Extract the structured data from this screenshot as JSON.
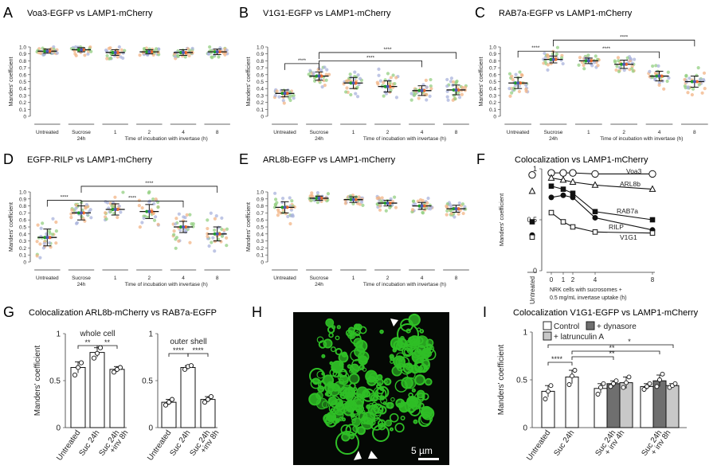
{
  "colors": {
    "green": "#93cf82",
    "purple": "#aab3dc",
    "orange": "#f2b486",
    "mean_green": "#1f9e28",
    "mean_orange": "#e8692c",
    "mean_purple": "#4b57b3",
    "microscopy_green": "#2fbf26",
    "bar_control": "#ffffff",
    "bar_dynasore": "#6f6f6f",
    "bar_latrunculin": "#c8c8c8",
    "text": "#222222"
  },
  "panels": {
    "A": {
      "letter": "A",
      "title": "Voa3-EGFP vs LAMP1-mCherry"
    },
    "B": {
      "letter": "B",
      "title": "V1G1-EGFP vs LAMP1-mCherry"
    },
    "C": {
      "letter": "C",
      "title": "RAB7a-EGFP vs LAMP1-mCherry"
    },
    "D": {
      "letter": "D",
      "title": "EGFP-RILP vs LAMP1-mCherry"
    },
    "E": {
      "letter": "E",
      "title": "ARL8b-EGFP vs LAMP1-mCherry"
    },
    "F": {
      "letter": "F",
      "title": "Colocalization vs LAMP1-mCherry"
    },
    "G": {
      "letter": "G",
      "title": "Colocalization ARL8b-mCherry vs RAB7a-EGFP"
    },
    "H": {
      "letter": "H",
      "scale_bar": "5 µm"
    },
    "I": {
      "letter": "I",
      "title": "Colocalization V1G1-EGFP vs LAMP1-mCherry"
    }
  },
  "chart_data": [
    {
      "panel": "A",
      "type": "scatter",
      "ylabel": "Manders' coefficient",
      "xlabel": "Time of incubation with invertase (h)",
      "ylim": [
        0,
        1.0
      ],
      "yticks": [
        "0",
        "0.1",
        "0.2",
        "0.3",
        "0.4",
        "0.5",
        "0.6",
        "0.7",
        "0.8",
        "0.9",
        "1.0"
      ],
      "categories": [
        "Untreated",
        "Sucrose\n24h",
        "1",
        "2",
        "4",
        "8"
      ],
      "means": [
        0.94,
        0.96,
        0.92,
        0.93,
        0.92,
        0.93
      ],
      "sd": [
        0.03,
        0.03,
        0.04,
        0.03,
        0.04,
        0.04
      ],
      "spread": [
        0.05,
        0.05,
        0.06,
        0.05,
        0.06,
        0.06
      ],
      "significance": []
    },
    {
      "panel": "B",
      "type": "scatter",
      "ylabel": "Manders' coefficient",
      "xlabel": "Time of incubation with invertase (h)",
      "ylim": [
        0,
        1.0
      ],
      "yticks": [
        "0",
        "0.1",
        "0.2",
        "0.3",
        "0.4",
        "0.5",
        "0.6",
        "0.7",
        "0.8",
        "0.9",
        "1.0"
      ],
      "categories": [
        "Untreated",
        "Sucrose\n24h",
        "1",
        "2",
        "4",
        "8"
      ],
      "means": [
        0.33,
        0.58,
        0.48,
        0.43,
        0.37,
        0.38
      ],
      "sd": [
        0.05,
        0.06,
        0.08,
        0.08,
        0.07,
        0.07
      ],
      "spread": [
        0.1,
        0.12,
        0.14,
        0.16,
        0.12,
        0.14
      ],
      "significance": [
        {
          "from": 0,
          "to": 1,
          "label": "****",
          "y": 0.76
        },
        {
          "from": 1,
          "to": 4,
          "label": "****",
          "y": 0.8
        },
        {
          "from": 1,
          "to": 5,
          "label": "****",
          "y": 0.92
        }
      ]
    },
    {
      "panel": "C",
      "type": "scatter",
      "ylabel": "Manders' coefficient",
      "xlabel": "Time of incubation with invertase (h)",
      "ylim": [
        0,
        1.0
      ],
      "yticks": [
        "0",
        "0.1",
        "0.2",
        "0.3",
        "0.4",
        "0.5",
        "0.6",
        "0.7",
        "0.8",
        "0.9",
        "1.0"
      ],
      "categories": [
        "Untreated",
        "Sucrose\n24h",
        "1",
        "2",
        "4",
        "8"
      ],
      "means": [
        0.48,
        0.82,
        0.8,
        0.75,
        0.58,
        0.5
      ],
      "sd": [
        0.08,
        0.05,
        0.04,
        0.06,
        0.07,
        0.08
      ],
      "spread": [
        0.14,
        0.1,
        0.08,
        0.1,
        0.14,
        0.16
      ],
      "significance": [
        {
          "from": 0,
          "to": 1,
          "label": "****",
          "y": 0.94
        },
        {
          "from": 1,
          "to": 4,
          "label": "****",
          "y": 0.93
        },
        {
          "from": 1,
          "to": 5,
          "label": "****",
          "y": 1.1
        }
      ]
    },
    {
      "panel": "D",
      "type": "scatter",
      "ylabel": "Manders' coefficient",
      "xlabel": "Time of incubation with invertase (h)",
      "ylim": [
        0,
        1.0
      ],
      "yticks": [
        "0",
        "0.1",
        "0.2",
        "0.3",
        "0.4",
        "0.5",
        "0.6",
        "0.7",
        "0.8",
        "0.9",
        "1.0"
      ],
      "categories": [
        "Untreated",
        "Sucrose\n24h",
        "1",
        "2",
        "4",
        "8"
      ],
      "means": [
        0.35,
        0.7,
        0.75,
        0.72,
        0.5,
        0.4
      ],
      "sd": [
        0.12,
        0.1,
        0.08,
        0.1,
        0.08,
        0.1
      ],
      "spread": [
        0.22,
        0.14,
        0.16,
        0.2,
        0.18,
        0.2
      ],
      "significance": [
        {
          "from": 0,
          "to": 1,
          "label": "****",
          "y": 0.88
        },
        {
          "from": 1,
          "to": 4,
          "label": "****",
          "y": 0.87
        },
        {
          "from": 1,
          "to": 5,
          "label": "****",
          "y": 1.08
        }
      ]
    },
    {
      "panel": "E",
      "type": "scatter",
      "ylabel": "Manders' coefficient",
      "xlabel": "Time of incubation with invertase (h)",
      "ylim": [
        0,
        1.0
      ],
      "yticks": [
        "0",
        "0.1",
        "0.2",
        "0.3",
        "0.4",
        "0.5",
        "0.6",
        "0.7",
        "0.8",
        "0.9",
        "1.0"
      ],
      "categories": [
        "Untreated",
        "Sucrose\n24h",
        "1",
        "2",
        "4",
        "8"
      ],
      "means": [
        0.78,
        0.91,
        0.89,
        0.84,
        0.8,
        0.76
      ],
      "sd": [
        0.08,
        0.03,
        0.04,
        0.04,
        0.05,
        0.05
      ],
      "spread": [
        0.14,
        0.05,
        0.06,
        0.07,
        0.1,
        0.08
      ],
      "significance": []
    },
    {
      "panel": "F",
      "type": "line",
      "ylabel": "Manders' coefficient",
      "xlabel_lines": [
        "NRK cells with sucrosomes +",
        "0.5 mg/mL invertase uptake (h)"
      ],
      "untreated_label": "Untreated",
      "x": [
        0,
        1,
        2,
        4,
        8
      ],
      "xticks": [
        "0",
        "1",
        "2",
        "4",
        "8"
      ],
      "ylim": [
        0,
        1
      ],
      "yticks": [
        "0",
        "0.5",
        "1"
      ],
      "series": [
        {
          "name": "Voa3",
          "marker": "circle-open",
          "untreated": 0.94,
          "values": [
            0.96,
            0.96,
            0.96,
            0.95,
            0.95
          ]
        },
        {
          "name": "ARL8b",
          "marker": "triangle-open",
          "untreated": 0.78,
          "values": [
            0.91,
            0.89,
            0.87,
            0.84,
            0.8
          ]
        },
        {
          "name": "RAB7a",
          "marker": "square-filled",
          "untreated": 0.48,
          "values": [
            0.83,
            0.8,
            0.76,
            0.58,
            0.5
          ]
        },
        {
          "name": "RILP",
          "marker": "circle-filled",
          "untreated": 0.35,
          "values": [
            0.72,
            0.74,
            0.72,
            0.52,
            0.4
          ]
        },
        {
          "name": "V1G1",
          "marker": "square-open",
          "untreated": 0.33,
          "values": [
            0.57,
            0.48,
            0.43,
            0.38,
            0.37
          ]
        }
      ]
    },
    {
      "panel": "G",
      "type": "bar",
      "subcharts": [
        {
          "subtitle": "whole cell",
          "categories": [
            "Untreated",
            "Suc 24h",
            "Suc 24h\n+inv 8h"
          ],
          "values": [
            0.64,
            0.8,
            0.62
          ],
          "sd": [
            0.06,
            0.05,
            0.03
          ],
          "points": [
            [
              0.56,
              0.64,
              0.69
            ],
            [
              0.74,
              0.79,
              0.85
            ],
            [
              0.59,
              0.62,
              0.64
            ]
          ],
          "significance": [
            {
              "from": 0,
              "to": 1,
              "label": "**"
            },
            {
              "from": 1,
              "to": 2,
              "label": "**"
            }
          ]
        },
        {
          "subtitle": "outer shell",
          "categories": [
            "Untreated",
            "Suc 24h",
            "Suc 24h\n+inv 8h"
          ],
          "values": [
            0.27,
            0.64,
            0.3
          ],
          "sd": [
            0.03,
            0.02,
            0.03
          ],
          "points": [
            [
              0.24,
              0.27,
              0.3
            ],
            [
              0.62,
              0.65,
              0.66
            ],
            [
              0.27,
              0.3,
              0.33
            ]
          ],
          "significance": [
            {
              "from": 0,
              "to": 1,
              "label": "****"
            },
            {
              "from": 1,
              "to": 2,
              "label": "****"
            }
          ]
        }
      ],
      "ylabel": "Manders' coefficient",
      "ylim": [
        0,
        1
      ],
      "yticks": [
        "0",
        "0.5",
        "1"
      ]
    },
    {
      "panel": "I",
      "type": "bar",
      "ylabel": "Manders' coefficient",
      "ylim": [
        0,
        1
      ],
      "yticks": [
        "0",
        "0.5",
        "1"
      ],
      "legend": [
        "Control",
        "+ dynasore",
        "+ latrunculin A"
      ],
      "categories": [
        "Untreated",
        "Suc 24h",
        "Suc 24h\n+ inv 4h",
        "Suc 24h\n+ inv 8h"
      ],
      "groups": [
        {
          "category": "Untreated",
          "bars": [
            {
              "series": "Control",
              "value": 0.38,
              "sd": 0.06,
              "points": [
                0.3,
                0.38,
                0.44
              ]
            }
          ]
        },
        {
          "category": "Suc 24h",
          "bars": [
            {
              "series": "Control",
              "value": 0.53,
              "sd": 0.07,
              "points": [
                0.45,
                0.54,
                0.6
              ]
            }
          ]
        },
        {
          "category": "Suc 24h\n+ inv 4h",
          "bars": [
            {
              "series": "Control",
              "value": 0.41,
              "sd": 0.05,
              "points": [
                0.35,
                0.42,
                0.46
              ]
            },
            {
              "series": "+ dynasore",
              "value": 0.46,
              "sd": 0.03,
              "points": [
                0.43,
                0.46,
                0.49
              ]
            },
            {
              "series": "+ latrunculin A",
              "value": 0.47,
              "sd": 0.06,
              "points": [
                0.42,
                0.47,
                0.53
              ]
            }
          ]
        },
        {
          "category": "Suc 24h\n+ inv 8h",
          "bars": [
            {
              "series": "Control",
              "value": 0.43,
              "sd": 0.03,
              "points": [
                0.4,
                0.43,
                0.46
              ]
            },
            {
              "series": "+ dynasore",
              "value": 0.49,
              "sd": 0.06,
              "points": [
                0.43,
                0.5,
                0.56
              ]
            },
            {
              "series": "+ latrunculin A",
              "value": 0.44,
              "sd": 0.02,
              "points": [
                0.42,
                0.44,
                0.46
              ]
            }
          ]
        }
      ],
      "significance": [
        {
          "label": "****"
        },
        {
          "label": "**"
        },
        {
          "label": "**"
        },
        {
          "label": "*"
        }
      ]
    }
  ]
}
